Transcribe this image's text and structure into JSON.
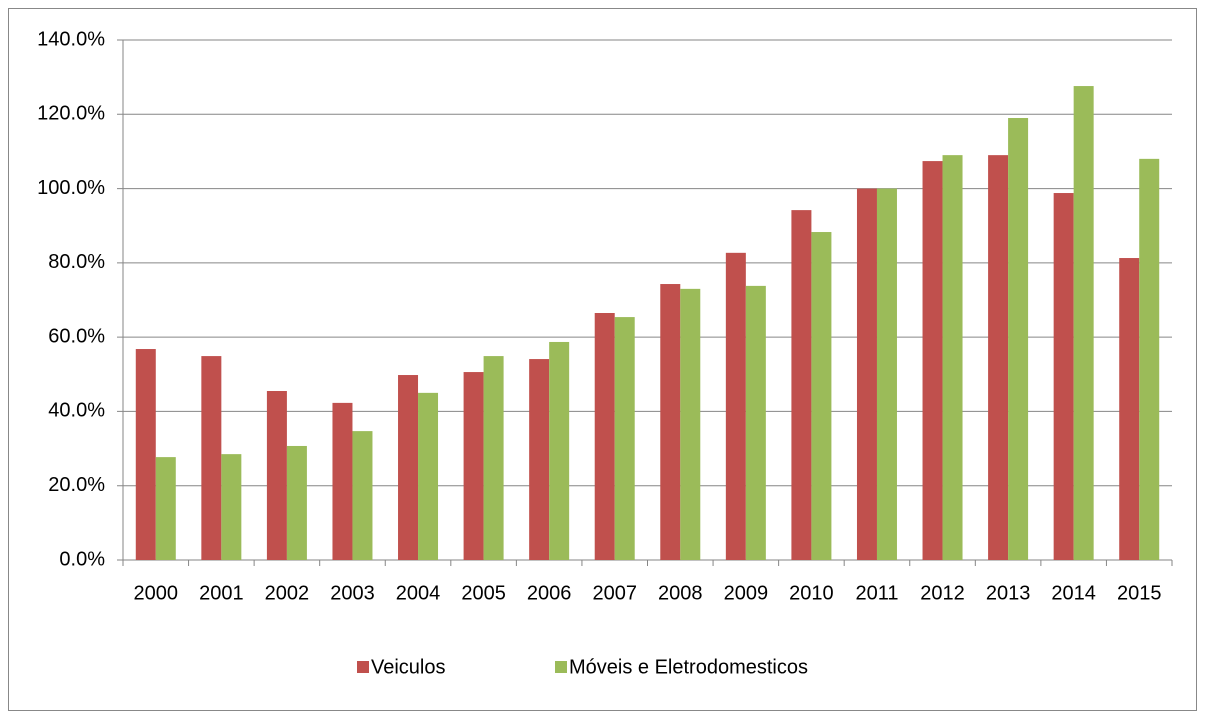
{
  "chart_data": {
    "type": "bar",
    "categories": [
      "2000",
      "2001",
      "2002",
      "2003",
      "2004",
      "2005",
      "2006",
      "2007",
      "2008",
      "2009",
      "2010",
      "2011",
      "2012",
      "2013",
      "2014",
      "2015"
    ],
    "series": [
      {
        "name": "Veiculos",
        "color": "#c0504d",
        "values": [
          56.8,
          54.9,
          45.5,
          42.3,
          49.8,
          50.6,
          54.1,
          66.5,
          74.3,
          82.7,
          94.2,
          100.0,
          107.4,
          109.0,
          98.8,
          81.3
        ]
      },
      {
        "name": "Móveis e Eletrodomesticos",
        "color": "#9bbb59",
        "values": [
          27.7,
          28.5,
          30.7,
          34.7,
          45.0,
          54.9,
          58.7,
          65.4,
          73.0,
          73.8,
          88.3,
          100.0,
          109.0,
          119.0,
          127.6,
          108.0
        ]
      }
    ],
    "ylim": [
      0,
      140
    ],
    "yticks": [
      {
        "value": 0,
        "label": "0.0%"
      },
      {
        "value": 20,
        "label": "20.0%"
      },
      {
        "value": 40,
        "label": "40.0%"
      },
      {
        "value": 60,
        "label": "60.0%"
      },
      {
        "value": 80,
        "label": "80.0%"
      },
      {
        "value": 100,
        "label": "100.0%"
      },
      {
        "value": 120,
        "label": "120.0%"
      },
      {
        "value": 140,
        "label": "140.0%"
      }
    ],
    "grid": true,
    "legend": "bottom"
  }
}
